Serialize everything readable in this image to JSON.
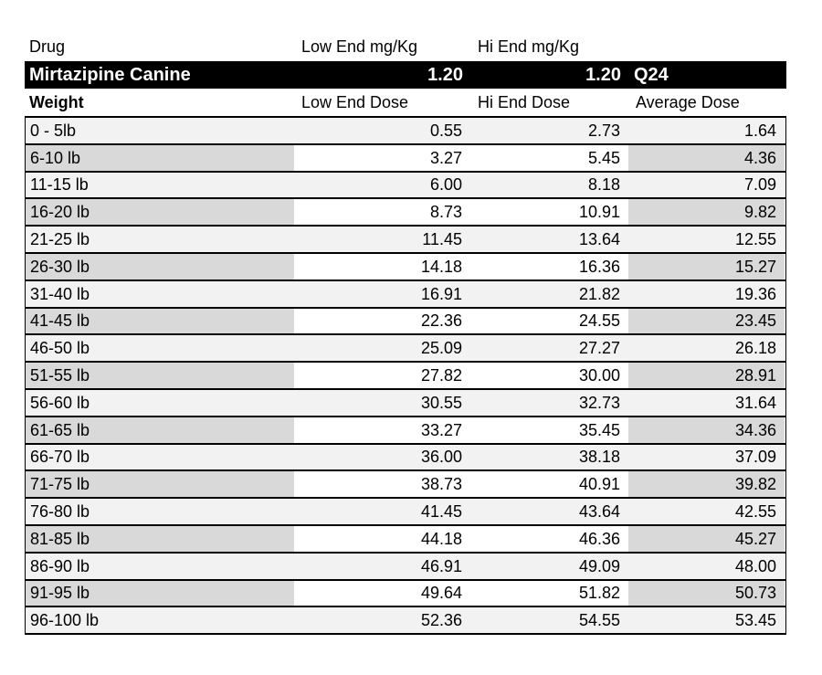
{
  "table": {
    "header": {
      "drug_label": "Drug",
      "low_mgkg_label": "Low End mg/Kg",
      "hi_mgkg_label": "Hi End mg/Kg"
    },
    "drug_bar": {
      "name": "Mirtazipine Canine",
      "low_mgkg": "1.20",
      "hi_mgkg": "1.20",
      "frequency": "Q24"
    },
    "columns": {
      "weight": "Weight",
      "low": "Low End Dose",
      "hi": "Hi End Dose",
      "avg": "Average Dose"
    },
    "rows": [
      {
        "weight": "0 - 5lb",
        "low": "0.55",
        "hi": "2.73",
        "avg": "1.64"
      },
      {
        "weight": "6-10 lb",
        "low": "3.27",
        "hi": "5.45",
        "avg": "4.36"
      },
      {
        "weight": "11-15 lb",
        "low": "6.00",
        "hi": "8.18",
        "avg": "7.09"
      },
      {
        "weight": "16-20 lb",
        "low": "8.73",
        "hi": "10.91",
        "avg": "9.82"
      },
      {
        "weight": "21-25 lb",
        "low": "11.45",
        "hi": "13.64",
        "avg": "12.55"
      },
      {
        "weight": "26-30 lb",
        "low": "14.18",
        "hi": "16.36",
        "avg": "15.27"
      },
      {
        "weight": "31-40 lb",
        "low": "16.91",
        "hi": "21.82",
        "avg": "19.36"
      },
      {
        "weight": "41-45 lb",
        "low": "22.36",
        "hi": "24.55",
        "avg": "23.45"
      },
      {
        "weight": "46-50 lb",
        "low": "25.09",
        "hi": "27.27",
        "avg": "26.18"
      },
      {
        "weight": "51-55 lb",
        "low": "27.82",
        "hi": "30.00",
        "avg": "28.91"
      },
      {
        "weight": "56-60 lb",
        "low": "30.55",
        "hi": "32.73",
        "avg": "31.64"
      },
      {
        "weight": "61-65 lb",
        "low": "33.27",
        "hi": "35.45",
        "avg": "34.36"
      },
      {
        "weight": "66-70 lb",
        "low": "36.00",
        "hi": "38.18",
        "avg": "37.09"
      },
      {
        "weight": "71-75 lb",
        "low": "38.73",
        "hi": "40.91",
        "avg": "39.82"
      },
      {
        "weight": "76-80 lb",
        "low": "41.45",
        "hi": "43.64",
        "avg": "42.55"
      },
      {
        "weight": "81-85 lb",
        "low": "44.18",
        "hi": "46.36",
        "avg": "45.27"
      },
      {
        "weight": "86-90 lb",
        "low": "46.91",
        "hi": "49.09",
        "avg": "48.00"
      },
      {
        "weight": "91-95 lb",
        "low": "49.64",
        "hi": "51.82",
        "avg": "50.73"
      },
      {
        "weight": "96-100 lb",
        "low": "52.36",
        "hi": "54.55",
        "avg": "53.45"
      }
    ]
  },
  "colors": {
    "stripe_light": "#f2f2f2",
    "stripe_dark": "#d9d9d9",
    "banner_bg": "#000000",
    "banner_text": "#ffffff",
    "border": "#000000"
  }
}
